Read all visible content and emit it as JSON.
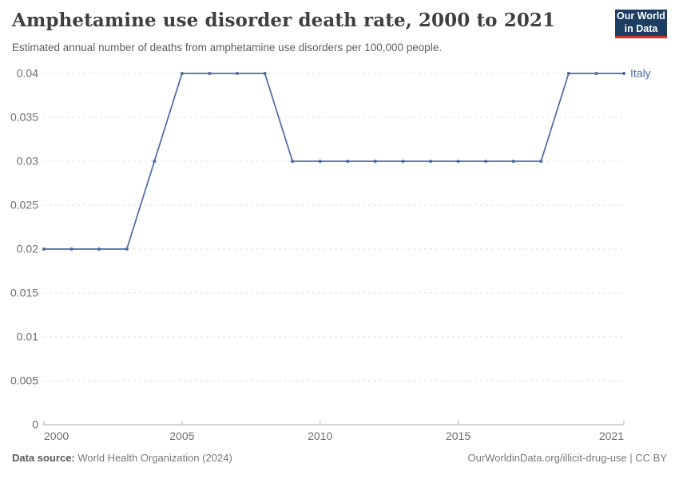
{
  "header": {
    "title": "Amphetamine use disorder death rate, 2000 to 2021",
    "subtitle": "Estimated annual number of deaths from amphetamine use disorders per 100,000 people.",
    "logo": {
      "line1": "Our World",
      "line2": "in Data",
      "bg_color": "#1d3d63",
      "accent_color": "#d8352a"
    }
  },
  "chart_data": {
    "type": "line",
    "title": "Amphetamine use disorder death rate, 2000 to 2021",
    "x": [
      2000,
      2001,
      2002,
      2003,
      2004,
      2005,
      2006,
      2007,
      2008,
      2009,
      2010,
      2011,
      2012,
      2013,
      2014,
      2015,
      2016,
      2017,
      2018,
      2019,
      2020,
      2021
    ],
    "series": [
      {
        "name": "Italy",
        "color": "#4a69a8",
        "values": [
          0.02,
          0.02,
          0.02,
          0.02,
          0.03,
          0.04,
          0.04,
          0.04,
          0.04,
          0.03,
          0.03,
          0.03,
          0.03,
          0.03,
          0.03,
          0.03,
          0.03,
          0.03,
          0.03,
          0.04,
          0.04,
          0.04
        ]
      }
    ],
    "xlabel": "",
    "ylabel": "",
    "xlim": [
      2000,
      2021
    ],
    "ylim": [
      0,
      0.04
    ],
    "xticks": [
      2000,
      2005,
      2010,
      2015,
      2021
    ],
    "yticks": [
      0,
      0.005,
      0.01,
      0.015,
      0.02,
      0.025,
      0.03,
      0.035,
      0.04
    ],
    "grid": "horizontal-dashed",
    "gridline_color": "#dcdcdc",
    "axis_color": "#a8a8a8",
    "legend_position": "end-of-line"
  },
  "footer": {
    "source_label": "Data source:",
    "source_value": " World Health Organization (2024)",
    "url": "OurWorldinData.org/illicit-drug-use",
    "separator": " | ",
    "license": "CC BY"
  }
}
